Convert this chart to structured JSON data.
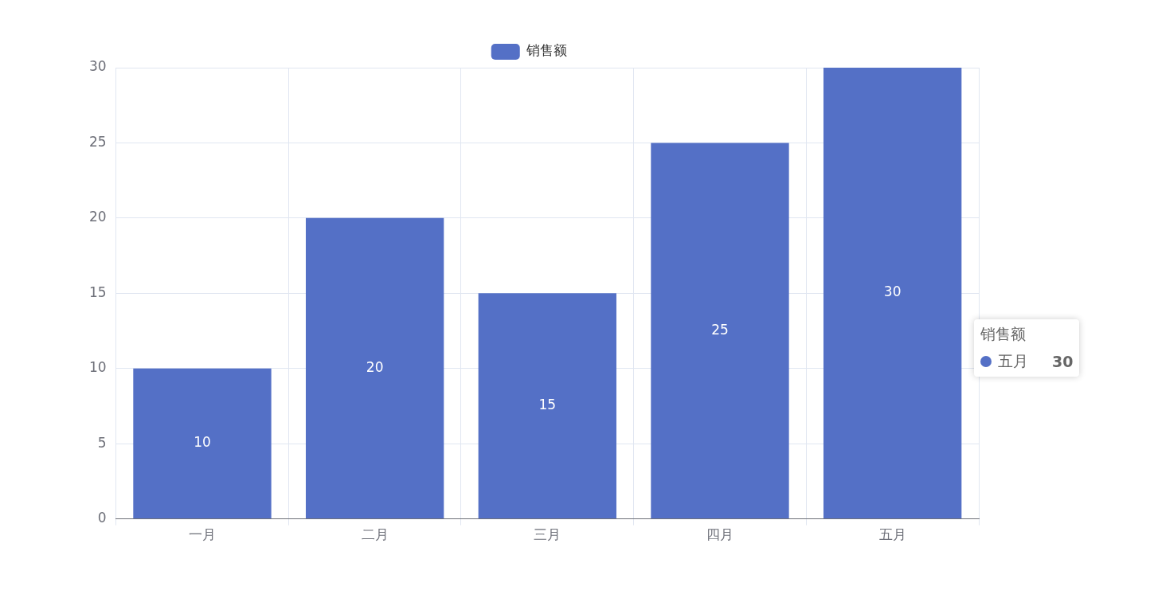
{
  "chart_data": {
    "type": "bar",
    "categories": [
      "一月",
      "二月",
      "三月",
      "四月",
      "五月"
    ],
    "series": [
      {
        "name": "销售额",
        "color": "#5470c6",
        "values": [
          10,
          20,
          15,
          25,
          30
        ]
      }
    ],
    "ylim": [
      0,
      30
    ],
    "yticks": [
      0,
      5,
      10,
      15,
      20,
      25,
      30
    ],
    "grid": true,
    "legend": "top",
    "data_labels": true,
    "annotations": [
      "销售额",
      "五月",
      "30"
    ]
  }
}
